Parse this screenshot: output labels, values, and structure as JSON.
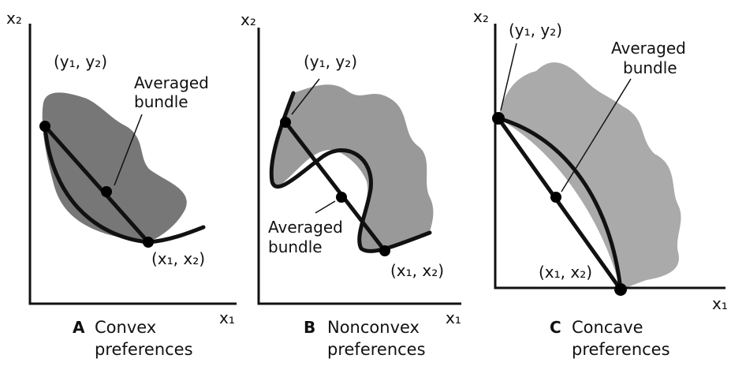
{
  "panels": [
    {
      "letter": "A",
      "caption": [
        "Convex",
        "preferences"
      ],
      "y_axis": "x₂",
      "x_axis": "x₁",
      "point_top": "(y₁, y₂)",
      "point_bottom": "(x₁, x₂)",
      "averaged": [
        "Averaged",
        "bundle"
      ]
    },
    {
      "letter": "B",
      "caption": [
        "Nonconvex",
        "preferences"
      ],
      "y_axis": "x₂",
      "x_axis": "x₁",
      "point_top": "(y₁, y₂)",
      "point_bottom": "(x₁, x₂)",
      "averaged": [
        "Averaged",
        "bundle"
      ]
    },
    {
      "letter": "C",
      "caption": [
        "Concave",
        "preferences"
      ],
      "y_axis": "x₂",
      "x_axis": "x₁",
      "point_top": "(y₁, y₂)",
      "point_bottom": "(x₁, x₂)",
      "averaged": [
        "Averaged",
        "bundle"
      ]
    }
  ]
}
